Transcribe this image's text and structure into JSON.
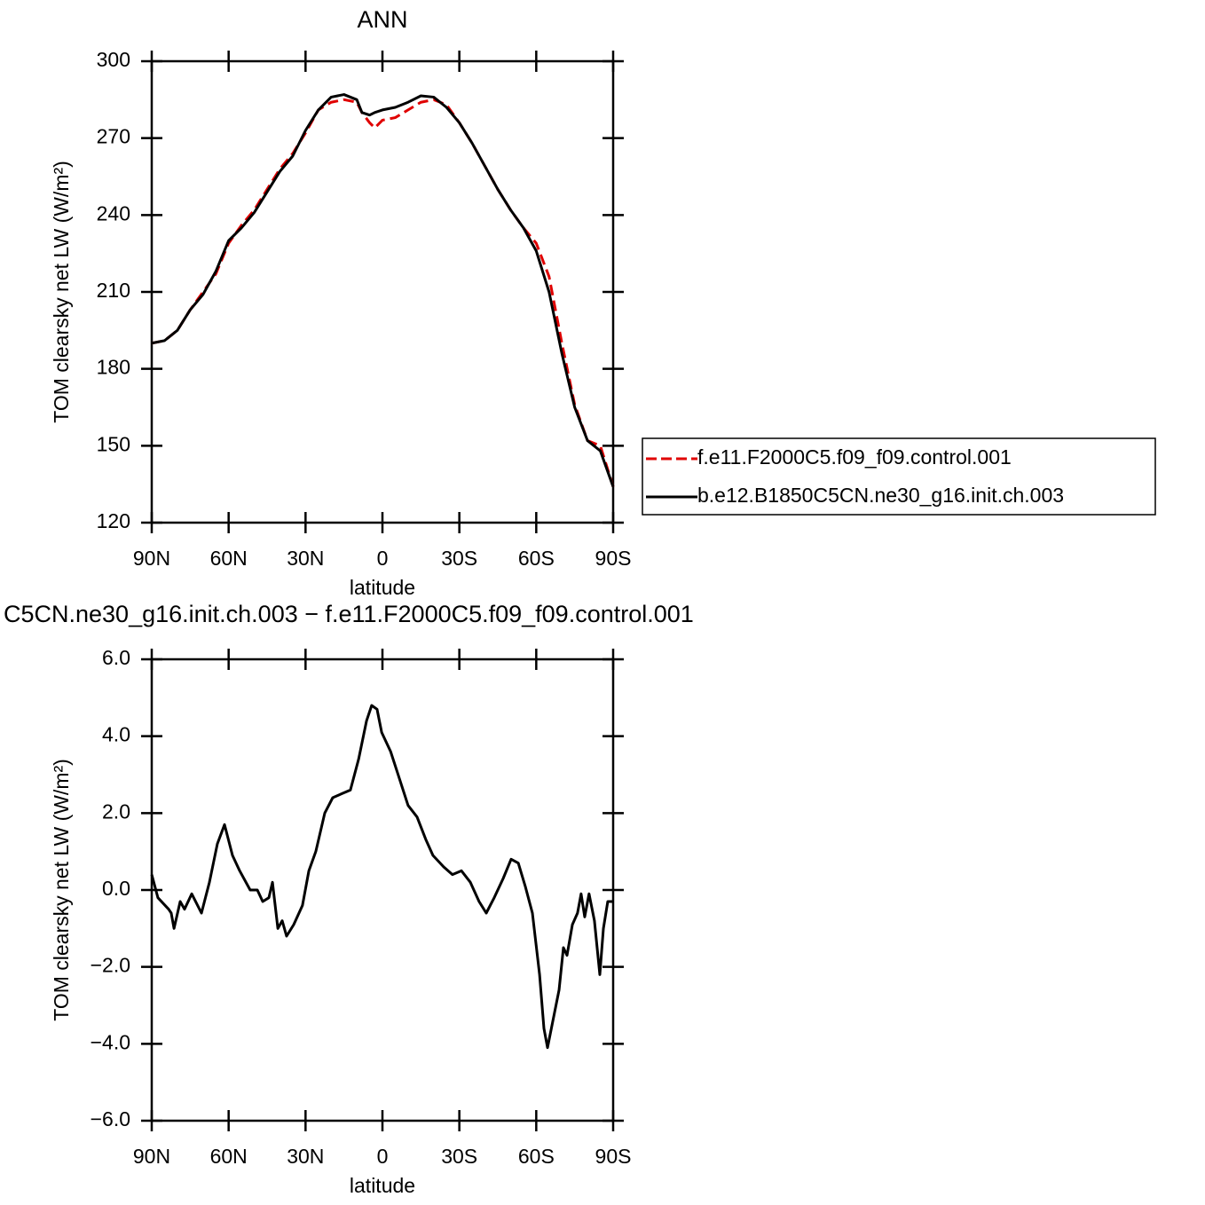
{
  "chart_data": [
    {
      "type": "line",
      "title": "ANN",
      "xlabel": "latitude",
      "ylabel": "TOM clearsky net LW (W/m²)",
      "x": [
        90,
        85,
        80,
        75,
        70,
        65,
        60,
        55,
        50,
        45,
        40,
        35,
        30,
        25,
        20,
        15,
        10,
        8,
        5,
        3,
        0,
        -5,
        -10,
        -15,
        -20,
        -25,
        -30,
        -35,
        -40,
        -45,
        -50,
        -55,
        -60,
        -65,
        -70,
        -75,
        -80,
        -85,
        -90
      ],
      "series": [
        {
          "name": "f.e11.F2000C5.f09_f09.control.001",
          "color": "#e00000",
          "dashed": true,
          "values": [
            190,
            191,
            195,
            203,
            210,
            217,
            229,
            236,
            242,
            250,
            258,
            264,
            272,
            281,
            284,
            285,
            284,
            280,
            276,
            274,
            277,
            278,
            281,
            284,
            285,
            283,
            276,
            268,
            259,
            250,
            242,
            235,
            229,
            216,
            190,
            166,
            152,
            150,
            134
          ]
        },
        {
          "name": "b.e12.B1850C5CN.ne30_g16.init.ch.003",
          "color": "#000000",
          "dashed": false,
          "values": [
            190,
            191,
            195,
            203,
            209,
            218,
            230,
            235,
            241,
            249,
            257,
            263,
            273,
            281,
            286,
            287,
            285,
            280,
            279,
            280,
            281,
            282,
            284,
            286.5,
            286,
            282,
            276,
            268,
            259,
            250,
            242,
            235,
            226,
            210,
            186,
            165,
            152,
            148,
            134
          ]
        }
      ],
      "xlim": [
        90,
        -90
      ],
      "xticks": [
        {
          "value": 90,
          "label": "90N"
        },
        {
          "value": 60,
          "label": "60N"
        },
        {
          "value": 30,
          "label": "30N"
        },
        0,
        {
          "value": -30,
          "label": "30S"
        },
        {
          "value": -60,
          "label": "60S"
        },
        {
          "value": -90,
          "label": "90S"
        }
      ],
      "ylim": [
        120,
        300
      ],
      "yticks": [
        120,
        150,
        180,
        210,
        240,
        270,
        300
      ],
      "legend": "right"
    },
    {
      "type": "line",
      "title": "C5CN.ne30_g16.init.ch.003 − f.e11.F2000C5.f09_f09.control.001",
      "xlabel": "latitude",
      "ylabel": "TOM clearsky net LW (W/m²)",
      "x": [
        90,
        87.6,
        83.4,
        82.4,
        81.3,
        78.9,
        77.2,
        74.4,
        70.6,
        67.5,
        64.4,
        61.6,
        58.5,
        55.7,
        51.6,
        48.8,
        46.7,
        44.3,
        42.9,
        40.8,
        39.1,
        37.4,
        34.6,
        31.2,
        28.7,
        26,
        22.5,
        19.4,
        16,
        12.5,
        9.3,
        6.2,
        4.2,
        2.1,
        0.3,
        -3.2,
        -6.6,
        -10,
        -13.5,
        -17,
        -19.7,
        -23.9,
        -27.3,
        -30.8,
        -34.3,
        -37.7,
        -40.5,
        -43.6,
        -47.1,
        -50.2,
        -53,
        -55.7,
        -58.5,
        -61.3,
        -63,
        -64.4,
        -66.5,
        -68.9,
        -70.6,
        -72,
        -74.1,
        -76.1,
        -77.5,
        -78.9,
        -80.6,
        -82.7,
        -84.8,
        -86.2,
        -87.9,
        -90
      ],
      "series": [
        {
          "color": "#000000",
          "dashed": false,
          "values": [
            0.4,
            -0.2,
            -0.5,
            -0.6,
            -1.0,
            -0.3,
            -0.5,
            -0.1,
            -0.6,
            0.2,
            1.2,
            1.7,
            0.9,
            0.5,
            0.0,
            0.0,
            -0.3,
            -0.2,
            0.2,
            -1.0,
            -0.8,
            -1.2,
            -0.9,
            -0.4,
            0.5,
            1.0,
            2.0,
            2.4,
            2.5,
            2.6,
            3.4,
            4.4,
            4.8,
            4.7,
            4.1,
            3.6,
            2.9,
            2.2,
            1.9,
            1.3,
            0.9,
            0.6,
            0.4,
            0.5,
            0.2,
            -0.3,
            -0.6,
            -0.2,
            0.3,
            0.8,
            0.7,
            0.1,
            -0.6,
            -2.2,
            -3.6,
            -4.1,
            -3.4,
            -2.6,
            -1.5,
            -1.7,
            -0.9,
            -0.6,
            -0.1,
            -0.7,
            -0.1,
            -0.8,
            -2.2,
            -1.0,
            -0.3,
            -0.3
          ]
        }
      ],
      "xlim": [
        90,
        -90
      ],
      "xticks": [
        {
          "value": 90,
          "label": "90N"
        },
        {
          "value": 60,
          "label": "60N"
        },
        {
          "value": 30,
          "label": "30N"
        },
        0,
        {
          "value": -30,
          "label": "30S"
        },
        {
          "value": -60,
          "label": "60S"
        },
        {
          "value": -90,
          "label": "90S"
        }
      ],
      "ylim": [
        -6,
        6
      ],
      "yticks": [
        {
          "value": -6,
          "label": "−6.0"
        },
        {
          "value": -4,
          "label": "−4.0"
        },
        {
          "value": -2,
          "label": "−2.0"
        },
        {
          "value": 0,
          "label": "0.0"
        },
        {
          "value": 2,
          "label": "2.0"
        },
        {
          "value": 4,
          "label": "4.0"
        },
        {
          "value": 6,
          "label": "6.0"
        }
      ]
    }
  ]
}
